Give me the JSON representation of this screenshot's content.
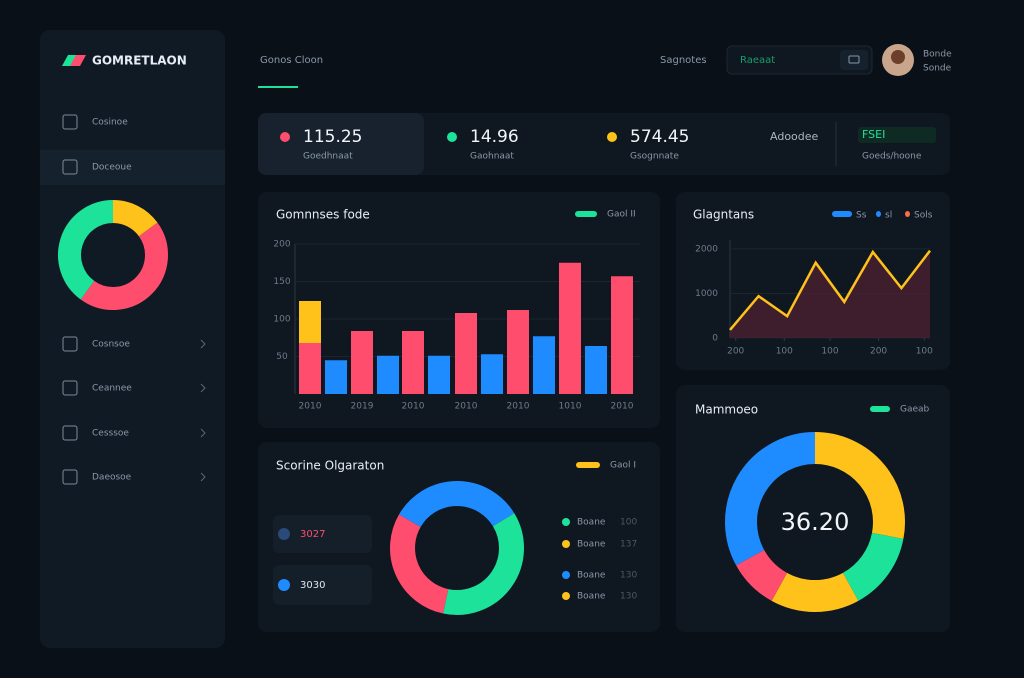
{
  "brand": "GOMRETLAON",
  "header": {
    "breadcrumb": "Gonos Cloon",
    "link": "Sagnotes",
    "search": "Raeaat",
    "user_name": "Bonde",
    "user_role": "Sonde"
  },
  "sidebar": {
    "items": [
      {
        "label": "Cosinoe"
      },
      {
        "label": "Doceoue"
      },
      {
        "label": "Cosnsoe"
      },
      {
        "label": "Ceannee"
      },
      {
        "label": "Cesssoe"
      },
      {
        "label": "Daeosoe"
      }
    ],
    "donut": {
      "type": "donut",
      "values": [
        15,
        45,
        40
      ],
      "colors": [
        "#ffc21a",
        "#ff4d6d",
        "#1de39a"
      ]
    }
  },
  "stats": [
    {
      "value": "115.25",
      "label": "Goedhnaat",
      "color": "#ff4d6d"
    },
    {
      "value": "14.96",
      "label": "Gaohnaat",
      "color": "#1de39a"
    },
    {
      "value": "574.45",
      "label": "Gsognnate",
      "color": "#ffc21a"
    },
    {
      "value": "Adoodee"
    },
    {
      "value": "FSEI",
      "label": "Goeds/hoone"
    }
  ],
  "bar_chart": {
    "type": "bar",
    "title": "Gomnnses fode",
    "legend": "Gaol II",
    "legend_color": "#1de39a",
    "categories": [
      "2010",
      "2019",
      "2010",
      "2010",
      "2010",
      "1010",
      "2010"
    ],
    "series": [
      {
        "color": "#ff4d6d",
        "values": [
          68,
          84,
          84,
          108,
          112,
          175,
          157
        ]
      },
      {
        "color": "#ffc21a",
        "stacked": true,
        "values": [
          56,
          null,
          null,
          null,
          null,
          null,
          null
        ]
      },
      {
        "color": "#1e8cff",
        "values": [
          45,
          51,
          51,
          53,
          77,
          64,
          null
        ]
      }
    ],
    "ylim": [
      0,
      200
    ],
    "yticks": [
      50,
      100,
      150,
      200
    ]
  },
  "line_chart": {
    "type": "line",
    "title": "Glagntans",
    "legend": [
      {
        "name": "Ss",
        "color": "#1e8cff"
      },
      {
        "name": "sl",
        "color": "#1e8cff"
      },
      {
        "name": "Sols",
        "color": "#ff6b4d"
      }
    ],
    "x": [
      0,
      1,
      2,
      3,
      4,
      5,
      6,
      7
    ],
    "values": [
      180,
      940,
      490,
      1690,
      810,
      1930,
      1120,
      1960
    ],
    "color": "#ffc21a",
    "xlim": [
      0,
      7
    ],
    "ylim": [
      0,
      2200
    ],
    "yticks": [
      0,
      1000,
      2000
    ],
    "xticks": [
      {
        "value": 0.2,
        "label": "200"
      },
      {
        "value": 1.9,
        "label": "100"
      },
      {
        "value": 3.5,
        "label": "100"
      },
      {
        "value": 5.2,
        "label": "200"
      },
      {
        "value": 6.8,
        "label": "100"
      }
    ]
  },
  "donut_chart": {
    "type": "donut",
    "title": "Mammoeo",
    "center": "36.20",
    "legend": "Gaeab",
    "legend_color": "#1de39a",
    "values": [
      28,
      14,
      16,
      9,
      33
    ],
    "colors": [
      "#ffc21a",
      "#1de39a",
      "#ffc21a",
      "#ff4d6d",
      "#1e8cff"
    ]
  },
  "ring_chart": {
    "type": "donut",
    "title": "Scorine Olgaraton",
    "legend": "Gaol I",
    "legend_color": "#ffc21a",
    "chips": [
      {
        "text": "3027",
        "color": "#ff4d6d"
      },
      {
        "text": "3030",
        "color": "#1e8cff"
      }
    ],
    "values": [
      33,
      37,
      30
    ],
    "colors": [
      "#1e8cff",
      "#1de39a",
      "#ff4d6d"
    ],
    "items": [
      {
        "label": "Boane",
        "value": "100",
        "color": "#1de39a"
      },
      {
        "label": "Boane",
        "value": "137",
        "color": "#ffc21a"
      },
      {
        "label": "Boane",
        "value": "130",
        "color": "#1e8cff"
      },
      {
        "label": "Boane",
        "value": "130",
        "color": "#ffc21a"
      }
    ]
  }
}
